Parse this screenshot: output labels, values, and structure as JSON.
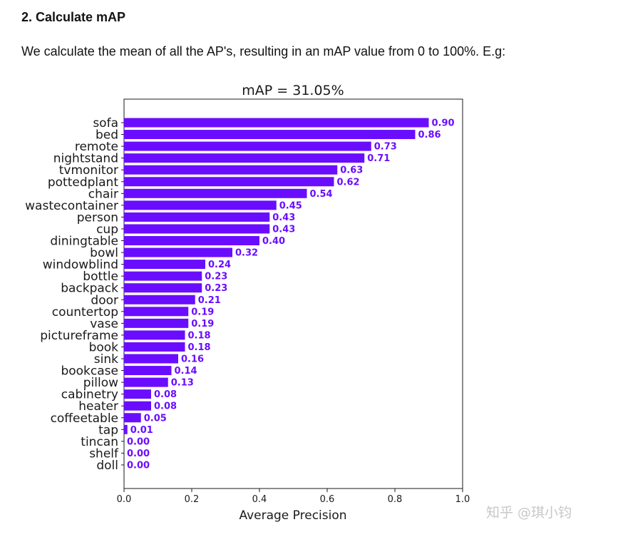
{
  "article": {
    "heading": "2. Calculate mAP",
    "paragraph": "We calculate the mean of all the AP's, resulting in an mAP value from 0 to 100%. E.g:"
  },
  "watermark": "知乎 @琪小钧",
  "chart_data": {
    "type": "bar",
    "orientation": "horizontal",
    "title": "mAP = 31.05%",
    "xlabel": "Average Precision",
    "ylabel": "",
    "xlim": [
      0,
      1.0
    ],
    "xticks": [
      "0.0",
      "0.2",
      "0.4",
      "0.6",
      "0.8",
      "1.0"
    ],
    "grid": false,
    "bar_color": "#6a0dff",
    "label_color": "#6a0dff",
    "categories": [
      "sofa",
      "bed",
      "remote",
      "nightstand",
      "tvmonitor",
      "pottedplant",
      "chair",
      "wastecontainer",
      "person",
      "cup",
      "diningtable",
      "bowl",
      "windowblind",
      "bottle",
      "backpack",
      "door",
      "countertop",
      "vase",
      "pictureframe",
      "book",
      "sink",
      "bookcase",
      "pillow",
      "cabinetry",
      "heater",
      "coffeetable",
      "tap",
      "tincan",
      "shelf",
      "doll"
    ],
    "values": [
      0.9,
      0.86,
      0.73,
      0.71,
      0.63,
      0.62,
      0.54,
      0.45,
      0.43,
      0.43,
      0.4,
      0.32,
      0.24,
      0.23,
      0.23,
      0.21,
      0.19,
      0.19,
      0.18,
      0.18,
      0.16,
      0.14,
      0.13,
      0.08,
      0.08,
      0.05,
      0.01,
      0.0,
      0.0,
      0.0
    ],
    "value_labels": [
      "0.90",
      "0.86",
      "0.73",
      "0.71",
      "0.63",
      "0.62",
      "0.54",
      "0.45",
      "0.43",
      "0.43",
      "0.40",
      "0.32",
      "0.24",
      "0.23",
      "0.23",
      "0.21",
      "0.19",
      "0.19",
      "0.18",
      "0.18",
      "0.16",
      "0.14",
      "0.13",
      "0.08",
      "0.08",
      "0.05",
      "0.01",
      "0.00",
      "0.00",
      "0.00"
    ]
  }
}
